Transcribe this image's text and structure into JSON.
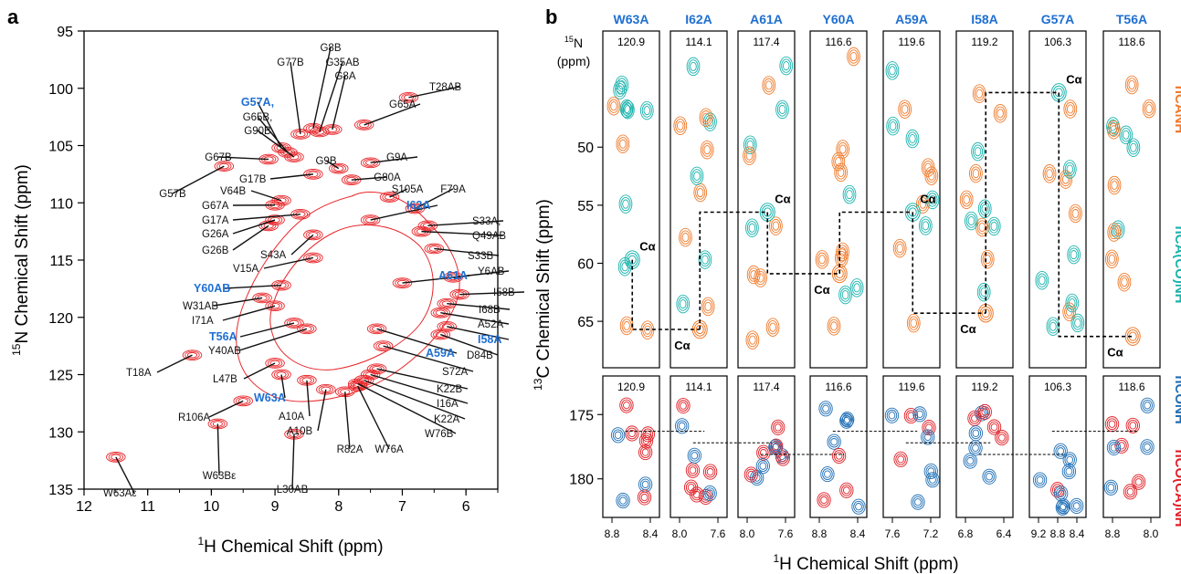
{
  "panel_a": {
    "label": "a",
    "xlabel_sup": "1",
    "xlabel_main": "H Chemical Shift (ppm)",
    "ylabel_sup": "15",
    "ylabel_main": "N Chemical Shift (ppm)",
    "colors": {
      "contour": "#e8262a",
      "highlight": "#1f6fd1",
      "text": "#111111"
    }
  },
  "panel_b": {
    "label": "b",
    "xlabel_sup": "1",
    "xlabel_main": "H Chemical Shift (ppm)",
    "ylabel_sup": "13",
    "ylabel_main": "C Chemical Shift (ppm)",
    "n15_sup": "15",
    "n15_main": "N",
    "n15_unit": "(ppm)",
    "ca_label": "Cα",
    "legend": [
      {
        "text": "hCANH",
        "color": "#f07a2a"
      },
      {
        "text": "hCA(CO)NH",
        "color": "#1ab3ad"
      },
      {
        "text": "hCONH",
        "color": "#1f6fb5"
      },
      {
        "text": "hCO(CA)NH",
        "color": "#e01f26"
      }
    ],
    "colors": {
      "orange": "#f07a2a",
      "teal": "#1ab3ad",
      "blue": "#1f6fb5",
      "red": "#e01f26",
      "header": "#1f6fd1"
    }
  },
  "chart_data": [
    {
      "type": "scatter",
      "title": "",
      "xlabel": "1H Chemical Shift (ppm)",
      "ylabel": "15N Chemical Shift (ppm)",
      "xlim": [
        12,
        5.5
      ],
      "ylim": [
        135,
        95
      ],
      "x_reversed": true,
      "y_reversed": true,
      "xticks": [
        "12",
        "11",
        "10",
        "9",
        "8",
        "7",
        "6"
      ],
      "yticks": [
        "95",
        "100",
        "105",
        "110",
        "115",
        "120",
        "125",
        "130",
        "135"
      ],
      "peaks": [
        {
          "label": "G8B",
          "x": 8.4,
          "y": 103.5
        },
        {
          "label": "G77B",
          "x": 8.6,
          "y": 104.0
        },
        {
          "label": "G35AB",
          "x": 8.3,
          "y": 103.8
        },
        {
          "label": "G8A",
          "x": 8.1,
          "y": 103.6
        },
        {
          "label": "T28AB",
          "x": 6.9,
          "y": 100.8
        },
        {
          "label": "G65A",
          "x": 7.6,
          "y": 103.2
        },
        {
          "label": "G57A,",
          "x": 8.9,
          "y": 105.2
        },
        {
          "label": "G65B,",
          "x": 8.8,
          "y": 105.6
        },
        {
          "label": "G90B",
          "x": 8.7,
          "y": 106.0
        },
        {
          "label": "G67B",
          "x": 9.1,
          "y": 106.2
        },
        {
          "label": "G9A",
          "x": 7.5,
          "y": 106.5
        },
        {
          "label": "G9B",
          "x": 8.0,
          "y": 107.0
        },
        {
          "label": "G57B",
          "x": 9.8,
          "y": 106.8
        },
        {
          "label": "G17B",
          "x": 8.4,
          "y": 107.5
        },
        {
          "label": "G80A",
          "x": 7.8,
          "y": 108.0
        },
        {
          "label": "S105A",
          "x": 7.2,
          "y": 109.5
        },
        {
          "label": "F79A",
          "x": 6.8,
          "y": 110.5
        },
        {
          "label": "V64B",
          "x": 8.9,
          "y": 109.8
        },
        {
          "label": "I62A",
          "x": 7.5,
          "y": 111.5
        },
        {
          "label": "G67A",
          "x": 9.0,
          "y": 110.2
        },
        {
          "label": "G17A",
          "x": 8.6,
          "y": 111.0
        },
        {
          "label": "S33A,",
          "x": 6.6,
          "y": 112.0
        },
        {
          "label": "Q49AB",
          "x": 6.7,
          "y": 112.5
        },
        {
          "label": "G26A",
          "x": 9.0,
          "y": 111.5
        },
        {
          "label": "G26B",
          "x": 9.1,
          "y": 112.0
        },
        {
          "label": "S43A",
          "x": 8.4,
          "y": 112.8
        },
        {
          "label": "S33B",
          "x": 6.5,
          "y": 114.0
        },
        {
          "label": "V15A",
          "x": 8.4,
          "y": 114.8
        },
        {
          "label": "A61A",
          "x": 7.0,
          "y": 117.0
        },
        {
          "label": "Y6AB",
          "x": 6.2,
          "y": 116.5
        },
        {
          "label": "Y60AB",
          "x": 8.9,
          "y": 117.2
        },
        {
          "label": "I58B",
          "x": 6.1,
          "y": 118.0
        },
        {
          "label": "W31AB",
          "x": 9.2,
          "y": 118.3
        },
        {
          "label": "I68B",
          "x": 6.3,
          "y": 118.8
        },
        {
          "label": "I71A",
          "x": 9.0,
          "y": 119.0
        },
        {
          "label": "A52A",
          "x": 6.4,
          "y": 119.6
        },
        {
          "label": "T56A",
          "x": 8.7,
          "y": 120.5
        },
        {
          "label": "I58A",
          "x": 6.3,
          "y": 120.8
        },
        {
          "label": "Y40AB",
          "x": 8.5,
          "y": 121.0
        },
        {
          "label": "D84B",
          "x": 6.4,
          "y": 121.5
        },
        {
          "label": "A59A",
          "x": 7.4,
          "y": 121.0
        },
        {
          "label": "S72A",
          "x": 7.3,
          "y": 122.5
        },
        {
          "label": "T18A",
          "x": 10.3,
          "y": 123.3
        },
        {
          "label": "L47B",
          "x": 9.0,
          "y": 124.0
        },
        {
          "label": "K22B",
          "x": 7.4,
          "y": 124.5
        },
        {
          "label": "I16A",
          "x": 7.5,
          "y": 125.0
        },
        {
          "label": "W63A",
          "x": 8.9,
          "y": 125.0
        },
        {
          "label": "K22A",
          "x": 7.6,
          "y": 125.5
        },
        {
          "label": "A10A",
          "x": 8.5,
          "y": 125.5
        },
        {
          "label": "W76B",
          "x": 7.7,
          "y": 125.8
        },
        {
          "label": "A10B",
          "x": 8.2,
          "y": 126.3
        },
        {
          "label": "R82A",
          "x": 7.9,
          "y": 126.5
        },
        {
          "label": "W76A",
          "x": 7.7,
          "y": 126.0
        },
        {
          "label": "R106A",
          "x": 9.5,
          "y": 127.3
        },
        {
          "label": "W63Bε",
          "x": 9.9,
          "y": 129.3
        },
        {
          "label": "L30AB",
          "x": 8.7,
          "y": 130.2
        },
        {
          "label": "W63Aε",
          "x": 11.5,
          "y": 132.2
        }
      ],
      "highlighted": [
        "G57A,",
        "I62A",
        "A61A",
        "Y60AB",
        "T56A",
        "I58A",
        "A59A",
        "W63A"
      ]
    },
    {
      "type": "scatter",
      "title": "",
      "xlabel": "1H Chemical Shift (ppm)",
      "ylabel": "13C Chemical Shift (ppm)",
      "strips": [
        {
          "residue": "W63A",
          "n15": "120.9",
          "xticks": [
            "8.8",
            "8.4"
          ]
        },
        {
          "residue": "I62A",
          "n15": "114.1",
          "xticks": [
            "8.0",
            "7.6"
          ]
        },
        {
          "residue": "A61A",
          "n15": "117.4",
          "xticks": [
            "8.0",
            "7.6"
          ]
        },
        {
          "residue": "Y60A",
          "n15": "116.6",
          "xticks": [
            "8.8",
            "8.4"
          ]
        },
        {
          "residue": "A59A",
          "n15": "119.6",
          "xticks": [
            "7.6",
            "7.2"
          ]
        },
        {
          "residue": "I58A",
          "n15": "119.2",
          "xticks": [
            "6.8",
            "6.4"
          ]
        },
        {
          "residue": "G57A",
          "n15": "106.3",
          "xticks": [
            "9.2",
            "8.8",
            "8.4"
          ]
        },
        {
          "residue": "T56A",
          "n15": "118.6",
          "xticks": [
            "8.8",
            "8.0"
          ]
        }
      ],
      "top_ylim": [
        40,
        69
      ],
      "top_yticks": [
        "50",
        "55",
        "60",
        "65"
      ],
      "bottom_ylim": [
        172,
        183
      ],
      "bottom_yticks": [
        "175",
        "180"
      ],
      "series": [
        {
          "name": "hCANH"
        },
        {
          "name": "hCA(CO)NH"
        },
        {
          "name": "hCONH"
        },
        {
          "name": "hCO(CA)NH"
        }
      ],
      "ca_connectivity": [
        {
          "residue": "W63A",
          "ca": 59.7
        },
        {
          "residue": "I62A",
          "ca": 65.7
        },
        {
          "residue": "A61A",
          "ca": 55.6
        },
        {
          "residue": "Y60A",
          "ca": 60.9
        },
        {
          "residue": "A59A",
          "ca": 55.6
        },
        {
          "residue": "I58A",
          "ca": 64.3
        },
        {
          "residue": "G57A",
          "ca": 45.3
        },
        {
          "residue": "T56A",
          "ca": 66.3
        }
      ]
    }
  ]
}
